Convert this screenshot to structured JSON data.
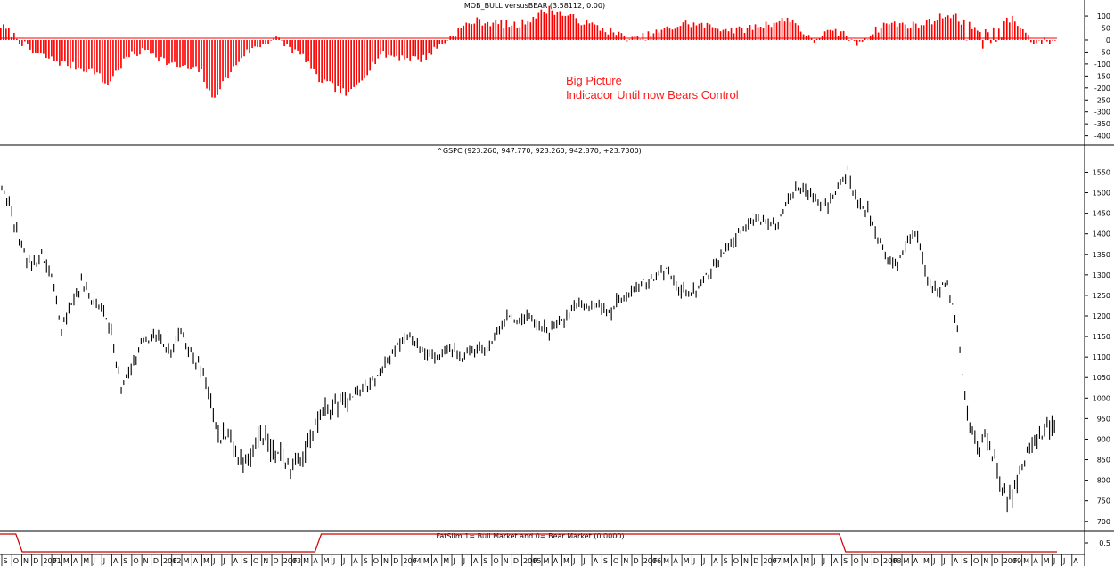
{
  "chart_data": [
    {
      "type": "bar",
      "title": "MOB_BULL versusBEAR (3.58112, 0.00)",
      "series_color": "#ff0000",
      "ylim": [
        -420,
        130
      ],
      "yticks": [
        100,
        50,
        0,
        -50,
        -100,
        -150,
        -200,
        -250,
        -300,
        -350,
        -400
      ],
      "annotation": [
        "Big Picture",
        "Indicador Until now Bears Control"
      ],
      "profile_x": [
        0,
        0.015,
        0.03,
        0.06,
        0.09,
        0.1,
        0.12,
        0.14,
        0.16,
        0.19,
        0.2,
        0.23,
        0.26,
        0.29,
        0.3,
        0.33,
        0.36,
        0.4,
        0.44,
        0.45,
        0.49,
        0.52,
        0.55,
        0.6,
        0.65,
        0.7,
        0.75,
        0.77,
        0.78,
        0.8,
        0.81,
        0.84,
        0.87,
        0.9,
        0.93,
        0.96,
        0.98,
        1.0
      ],
      "profile_y": [
        60,
        10,
        -50,
        -100,
        -130,
        -190,
        -70,
        -40,
        -100,
        -130,
        -250,
        -60,
        10,
        -80,
        -160,
        -230,
        -60,
        -80,
        60,
        80,
        60,
        130,
        80,
        0,
        70,
        40,
        90,
        -10,
        30,
        30,
        -20,
        70,
        60,
        110,
        30,
        90,
        -10,
        0
      ]
    },
    {
      "type": "line",
      "title": "^GSPC (923.260, 947.770, 923.260, 942.870, +23.7300)",
      "ylim": [
        680,
        1590
      ],
      "yticks": [
        1550,
        1500,
        1450,
        1400,
        1350,
        1300,
        1250,
        1200,
        1150,
        1100,
        1050,
        1000,
        950,
        900,
        850,
        800,
        750,
        700
      ],
      "x_months": [
        "S",
        "O",
        "N",
        "D",
        "2001",
        "F",
        "M",
        "A",
        "M",
        "J",
        "J",
        "A",
        "S",
        "O",
        "N",
        "D",
        "2002",
        "F",
        "M",
        "A",
        "M",
        "J",
        "J",
        "A",
        "S",
        "O",
        "N",
        "D",
        "2003",
        "F",
        "M",
        "A",
        "M",
        "J",
        "J",
        "A",
        "S",
        "O",
        "N",
        "D",
        "2004",
        "F",
        "M",
        "A",
        "M",
        "J",
        "J",
        "A",
        "S",
        "O",
        "N",
        "D",
        "2005",
        "F",
        "M",
        "A",
        "M",
        "J",
        "J",
        "A",
        "S",
        "O",
        "N",
        "D",
        "2006",
        "F",
        "M",
        "A",
        "M",
        "J",
        "J",
        "A",
        "S",
        "O",
        "N",
        "D",
        "2007",
        "F",
        "M",
        "A",
        "M",
        "J",
        "J",
        "A",
        "S",
        "O",
        "N",
        "D",
        "2008",
        "F",
        "M",
        "A",
        "M",
        "J",
        "J",
        "A",
        "S",
        "O",
        "N",
        "D",
        "2009",
        "F",
        "M",
        "A",
        "M",
        "J",
        "J",
        "A"
      ],
      "x": [
        "2000-09",
        "2000-10",
        "2000-11",
        "2000-12",
        "2001-01",
        "2001-02",
        "2001-03",
        "2001-04",
        "2001-05",
        "2001-06",
        "2001-07",
        "2001-08",
        "2001-09",
        "2001-10",
        "2001-11",
        "2001-12",
        "2002-01",
        "2002-02",
        "2002-03",
        "2002-04",
        "2002-05",
        "2002-06",
        "2002-07",
        "2002-08",
        "2002-09",
        "2002-10",
        "2002-11",
        "2002-12",
        "2003-01",
        "2003-02",
        "2003-03",
        "2003-04",
        "2003-05",
        "2003-06",
        "2003-07",
        "2003-08",
        "2003-09",
        "2003-10",
        "2003-11",
        "2003-12",
        "2004-01",
        "2004-02",
        "2004-03",
        "2004-04",
        "2004-05",
        "2004-06",
        "2004-07",
        "2004-08",
        "2004-09",
        "2004-10",
        "2004-11",
        "2004-12",
        "2005-01",
        "2005-02",
        "2005-03",
        "2005-04",
        "2005-05",
        "2005-06",
        "2005-07",
        "2005-08",
        "2005-09",
        "2005-10",
        "2005-11",
        "2005-12",
        "2006-01",
        "2006-02",
        "2006-03",
        "2006-04",
        "2006-05",
        "2006-06",
        "2006-07",
        "2006-08",
        "2006-09",
        "2006-10",
        "2006-11",
        "2006-12",
        "2007-01",
        "2007-02",
        "2007-03",
        "2007-04",
        "2007-05",
        "2007-06",
        "2007-07",
        "2007-08",
        "2007-09",
        "2007-10",
        "2007-11",
        "2007-12",
        "2008-01",
        "2008-02",
        "2008-03",
        "2008-04",
        "2008-05",
        "2008-06",
        "2008-07",
        "2008-08",
        "2008-09",
        "2008-10",
        "2008-11",
        "2008-12",
        "2009-01",
        "2009-02",
        "2009-03",
        "2009-04",
        "2009-05",
        "2009-06"
      ],
      "values": [
        1520,
        1450,
        1360,
        1320,
        1350,
        1300,
        1170,
        1230,
        1280,
        1240,
        1215,
        1160,
        1020,
        1070,
        1130,
        1150,
        1140,
        1110,
        1160,
        1110,
        1070,
        990,
        900,
        910,
        840,
        860,
        920,
        880,
        860,
        840,
        850,
        900,
        950,
        980,
        990,
        1000,
        1020,
        1040,
        1060,
        1100,
        1130,
        1150,
        1120,
        1110,
        1100,
        1130,
        1090,
        1110,
        1120,
        1130,
        1170,
        1200,
        1180,
        1200,
        1180,
        1160,
        1190,
        1200,
        1230,
        1220,
        1230,
        1200,
        1240,
        1250,
        1280,
        1280,
        1300,
        1310,
        1270,
        1250,
        1270,
        1300,
        1330,
        1370,
        1400,
        1420,
        1440,
        1420,
        1430,
        1480,
        1510,
        1500,
        1480,
        1460,
        1520,
        1550,
        1470,
        1460,
        1380,
        1340,
        1320,
        1390,
        1400,
        1280,
        1260,
        1280,
        1160,
        960,
        890,
        900,
        830,
        740,
        790,
        870,
        900,
        930
      ]
    },
    {
      "type": "line",
      "title": "FatSlim  1= Bull Market and 0= Bear Market (0.0000)",
      "series_color": "#cc0000",
      "ylim": [
        -0.1,
        1.1
      ],
      "yticks": [
        0.5
      ],
      "x": [
        0,
        0.015,
        0.021,
        0.298,
        0.304,
        0.794,
        0.8,
        1.0
      ],
      "values": [
        1,
        1,
        0,
        0,
        1,
        1,
        0,
        0
      ]
    }
  ]
}
